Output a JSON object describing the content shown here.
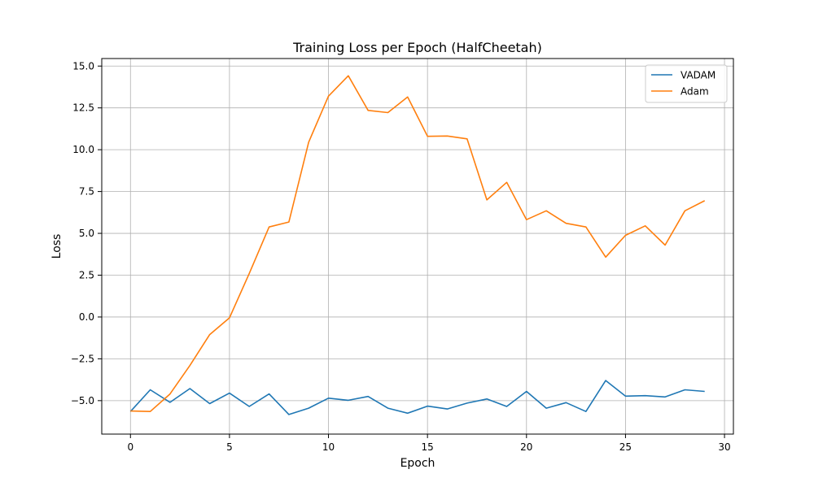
{
  "chart_data": {
    "type": "line",
    "title": "Training Loss per Epoch (HalfCheetah)",
    "xlabel": "Epoch",
    "ylabel": "Loss",
    "xlim": [
      -1.45,
      30.45
    ],
    "ylim": [
      -7.0,
      15.45
    ],
    "xticks": [
      0,
      5,
      10,
      15,
      20,
      25,
      30
    ],
    "xtick_labels": [
      "0",
      "5",
      "10",
      "15",
      "20",
      "25",
      "30"
    ],
    "yticks": [
      -5.0,
      -2.5,
      0.0,
      2.5,
      5.0,
      7.5,
      10.0,
      12.5,
      15.0
    ],
    "ytick_labels": [
      "−5.0",
      "−2.5",
      "0.0",
      "2.5",
      "5.0",
      "7.5",
      "10.0",
      "12.5",
      "15.0"
    ],
    "grid": true,
    "legend_position": "top-right",
    "x": [
      0,
      1,
      2,
      3,
      4,
      5,
      6,
      7,
      8,
      9,
      10,
      11,
      12,
      13,
      14,
      15,
      16,
      17,
      18,
      19,
      20,
      21,
      22,
      23,
      24,
      25,
      26,
      27,
      28,
      29
    ],
    "series": [
      {
        "name": "VADAM",
        "color": "#1f77b4",
        "values": [
          -5.65,
          -4.35,
          -5.1,
          -4.28,
          -5.18,
          -4.55,
          -5.35,
          -4.6,
          -5.83,
          -5.45,
          -4.85,
          -4.98,
          -4.75,
          -5.45,
          -5.75,
          -5.33,
          -5.5,
          -5.15,
          -4.9,
          -5.35,
          -4.45,
          -5.45,
          -5.12,
          -5.65,
          -3.8,
          -4.73,
          -4.7,
          -4.78,
          -4.35,
          -4.45
        ]
      },
      {
        "name": "Adam",
        "color": "#ff7f0e",
        "values": [
          -5.62,
          -5.65,
          -4.6,
          -2.9,
          -1.05,
          -0.05,
          2.6,
          5.38,
          5.68,
          10.45,
          13.2,
          14.42,
          12.35,
          12.22,
          13.15,
          10.8,
          10.82,
          10.65,
          7.0,
          8.05,
          5.82,
          6.35,
          5.6,
          5.38,
          3.58,
          4.88,
          5.45,
          4.3,
          6.35,
          6.95
        ]
      }
    ]
  }
}
